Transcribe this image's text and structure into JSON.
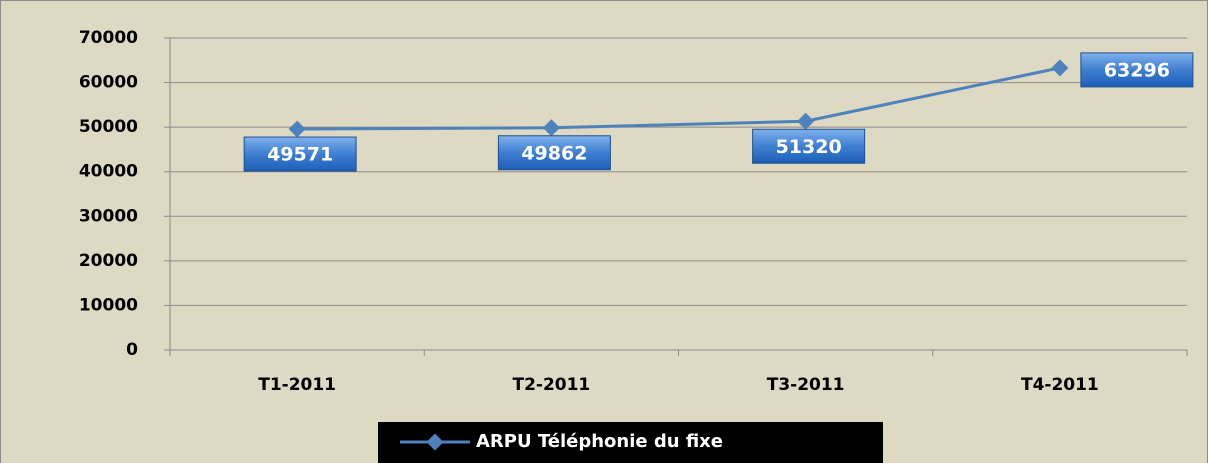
{
  "chart_data": {
    "type": "line",
    "categories": [
      "T1-2011",
      "T2-2011",
      "T3-2011",
      "T4-2011"
    ],
    "series": [
      {
        "name": "ARPU Téléphonie du fixe",
        "color": "#4f81bd",
        "values": [
          49571,
          49862,
          51320,
          63296
        ]
      }
    ],
    "ylim": [
      0,
      70000
    ],
    "yticks": [
      0,
      10000,
      20000,
      30000,
      40000,
      50000,
      60000,
      70000
    ],
    "grid": true,
    "legend": "bottom"
  }
}
